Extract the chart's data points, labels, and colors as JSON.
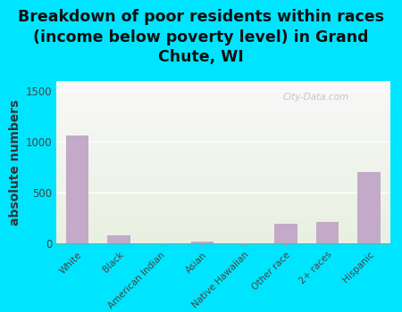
{
  "title": "Breakdown of poor residents within races\n(income below poverty level) in Grand\nChute, WI",
  "categories": [
    "White",
    "Black",
    "American Indian",
    "Asian",
    "Native Hawaiian",
    "Other race",
    "2+ races",
    "Hispanic"
  ],
  "values": [
    1060,
    75,
    0,
    15,
    0,
    190,
    215,
    700
  ],
  "bar_color": "#c2aac8",
  "ylabel": "absolute numbers",
  "ylim": [
    0,
    1600
  ],
  "yticks": [
    0,
    500,
    1000,
    1500
  ],
  "background_outer": "#00e5ff",
  "background_plot_top": "#e8f0e0",
  "background_plot_bottom": "#f8f8f8",
  "watermark": "City-Data.com",
  "title_fontsize": 12.5,
  "ylabel_fontsize": 10
}
